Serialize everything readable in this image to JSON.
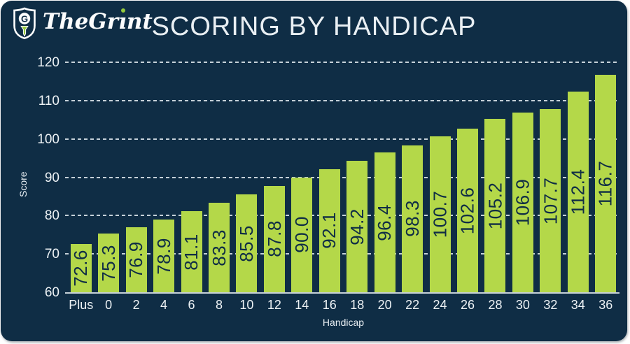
{
  "header": {
    "title": "SCORING BY HANDICAP",
    "logo": {
      "wordmark": "TheGrint",
      "icon": "shield-golf-tee-icon"
    }
  },
  "colors": {
    "card_background": "#0f2d45",
    "bar_fill": "#b4d849",
    "bar_value_text": "#0f2d45",
    "light_text": "#edf2f5",
    "gridline": "#d9e3e9",
    "logo_green": "#95c93d"
  },
  "chart_data": {
    "type": "bar",
    "title": "SCORING BY HANDICAP",
    "xlabel": "Handicap",
    "ylabel": "Score",
    "categories": [
      "Plus",
      "0",
      "2",
      "4",
      "6",
      "8",
      "10",
      "12",
      "14",
      "16",
      "18",
      "20",
      "22",
      "24",
      "26",
      "28",
      "30",
      "32",
      "34",
      "36"
    ],
    "values": [
      72.6,
      75.3,
      76.9,
      78.9,
      81.1,
      83.3,
      85.5,
      87.8,
      90.0,
      92.1,
      94.2,
      96.4,
      98.3,
      100.7,
      102.6,
      105.2,
      106.9,
      107.7,
      112.4,
      116.7
    ],
    "value_label_format": "one-decimal, rotated 90° inside bar",
    "ylim": [
      60,
      120
    ],
    "yticks": [
      60,
      70,
      80,
      90,
      100,
      110,
      120
    ],
    "grid": "dashed horizontal gridlines at each y tick",
    "legend": "none"
  }
}
